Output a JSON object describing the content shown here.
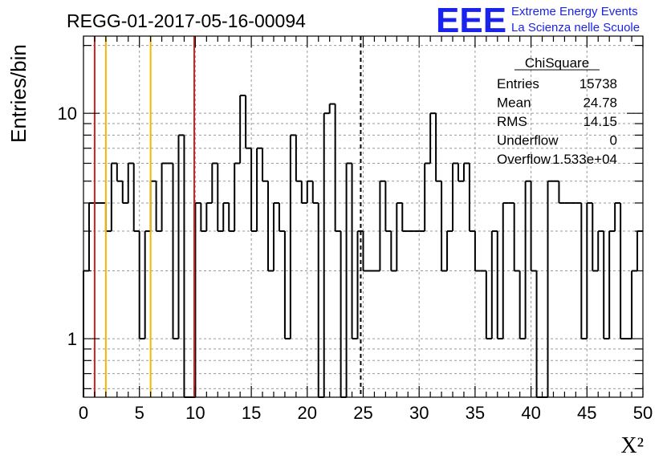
{
  "chart_data": {
    "type": "bar",
    "histogram_style": "step",
    "title": "REGG-01-2017-05-16-00094",
    "xlabel": "X²",
    "ylabel": "Entries/bin",
    "xlim": [
      0,
      50
    ],
    "ylim": [
      0.55,
      22
    ],
    "y_scale": "log",
    "grid": true,
    "bin_width": 0.5,
    "x_ticks": [
      0,
      5,
      10,
      15,
      20,
      25,
      30,
      35,
      40,
      45,
      50
    ],
    "y_ticks": [
      1,
      10
    ],
    "bins_lower_edge": [
      0,
      0.5,
      1,
      1.5,
      2,
      2.5,
      3,
      3.5,
      4,
      4.5,
      5,
      5.5,
      6,
      6.5,
      7,
      7.5,
      8,
      8.5,
      9,
      9.5,
      10,
      10.5,
      11,
      11.5,
      12,
      12.5,
      13,
      13.5,
      14,
      14.5,
      15,
      15.5,
      16,
      16.5,
      17,
      17.5,
      18,
      18.5,
      19,
      19.5,
      20,
      20.5,
      21,
      21.5,
      22,
      22.5,
      23,
      23.5,
      24,
      24.5,
      25,
      25.5,
      26,
      26.5,
      27,
      27.5,
      28,
      28.5,
      29,
      29.5,
      30,
      30.5,
      31,
      31.5,
      32,
      32.5,
      33,
      33.5,
      34,
      34.5,
      35,
      35.5,
      36,
      36.5,
      37,
      37.5,
      38,
      38.5,
      39,
      39.5,
      40,
      40.5,
      41,
      41.5,
      42,
      42.5,
      43,
      43.5,
      44,
      44.5,
      45,
      45.5,
      46,
      46.5,
      47,
      47.5,
      48,
      48.5,
      49,
      49.5
    ],
    "values": [
      2,
      4,
      4,
      4,
      3,
      6,
      5,
      4,
      6,
      3,
      1,
      3,
      5,
      3,
      6,
      6,
      1,
      8,
      0,
      0,
      4,
      3,
      4,
      6,
      3,
      4,
      3,
      6,
      12,
      7,
      3,
      7,
      5,
      2,
      4,
      3,
      1,
      8,
      5,
      4,
      5,
      4,
      0,
      10,
      11,
      3,
      0,
      6,
      1,
      3,
      2,
      2,
      2,
      5,
      3,
      2,
      4,
      3,
      3,
      3,
      3,
      6,
      10,
      5,
      2,
      3,
      6,
      5,
      6,
      3,
      2,
      2,
      1,
      3,
      1,
      4,
      4,
      2,
      1,
      5,
      2,
      0,
      0,
      5,
      5,
      4,
      4,
      4,
      4,
      1,
      4,
      2,
      3,
      1,
      3,
      4,
      1,
      1,
      2,
      3
    ],
    "vertical_lines": [
      {
        "x": 1.0,
        "color": "#d72020",
        "style": "solid"
      },
      {
        "x": 2.0,
        "color": "#f0b800",
        "style": "solid"
      },
      {
        "x": 6.0,
        "color": "#f0b800",
        "style": "solid"
      },
      {
        "x": 9.9,
        "color": "#d72020",
        "style": "solid"
      },
      {
        "x": 24.78,
        "color": "#000000",
        "style": "dashed"
      }
    ],
    "stats_box": {
      "title": "ChiSquare",
      "rows": [
        {
          "label": "Entries",
          "value": "15738"
        },
        {
          "label": "Mean",
          "value": "24.78"
        },
        {
          "label": "RMS",
          "value": "14.15"
        },
        {
          "label": "Underflow",
          "value": "0"
        },
        {
          "label": "Overflow",
          "value": "1.533e+04"
        }
      ],
      "placement": "top-right"
    }
  },
  "logo": {
    "text": "EEE",
    "line1": "Extreme Energy Events",
    "line2": "La Scienza nelle Scuole",
    "color": "#1a22ee"
  }
}
